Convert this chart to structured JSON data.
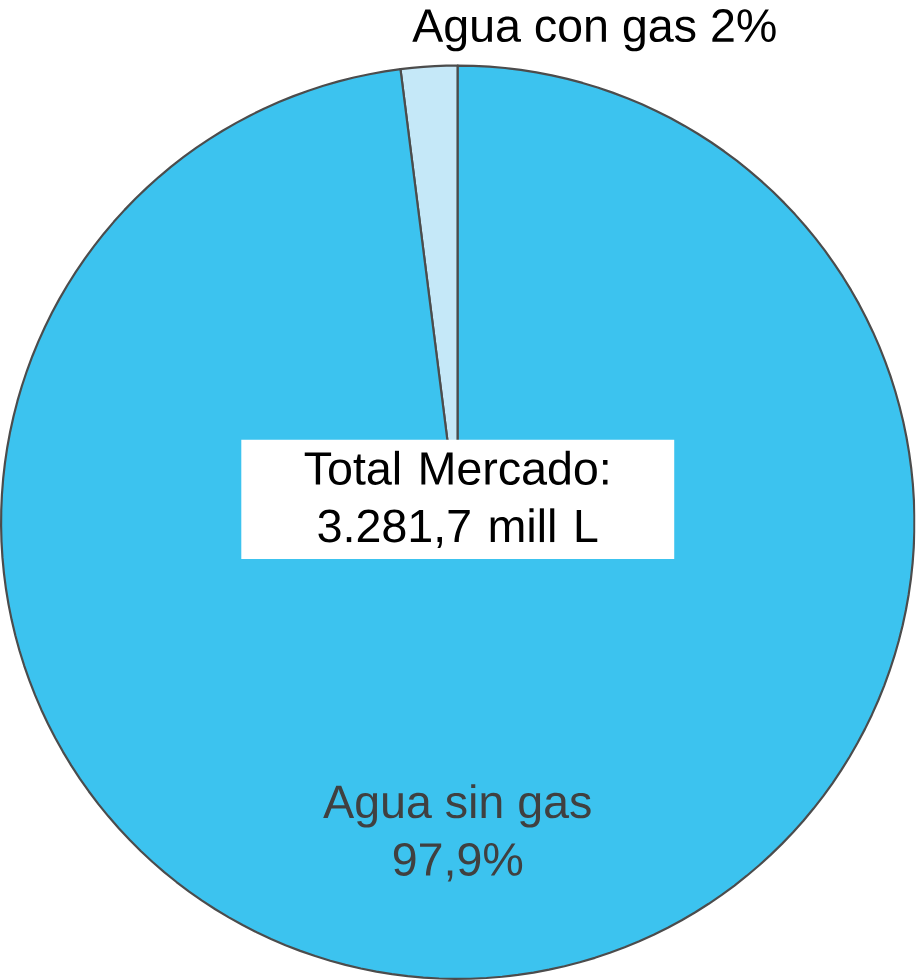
{
  "chart_data": {
    "type": "pie",
    "categories": [
      "Agua con gas",
      "Agua sin gas"
    ],
    "values": [
      2,
      97.9
    ],
    "value_labels": [
      "2%",
      "97,9%"
    ],
    "colors": [
      "#c5e8f8",
      "#3cc3ef"
    ],
    "annotations": [
      "Total Mercado: 3.281,7 mill L"
    ]
  }
}
